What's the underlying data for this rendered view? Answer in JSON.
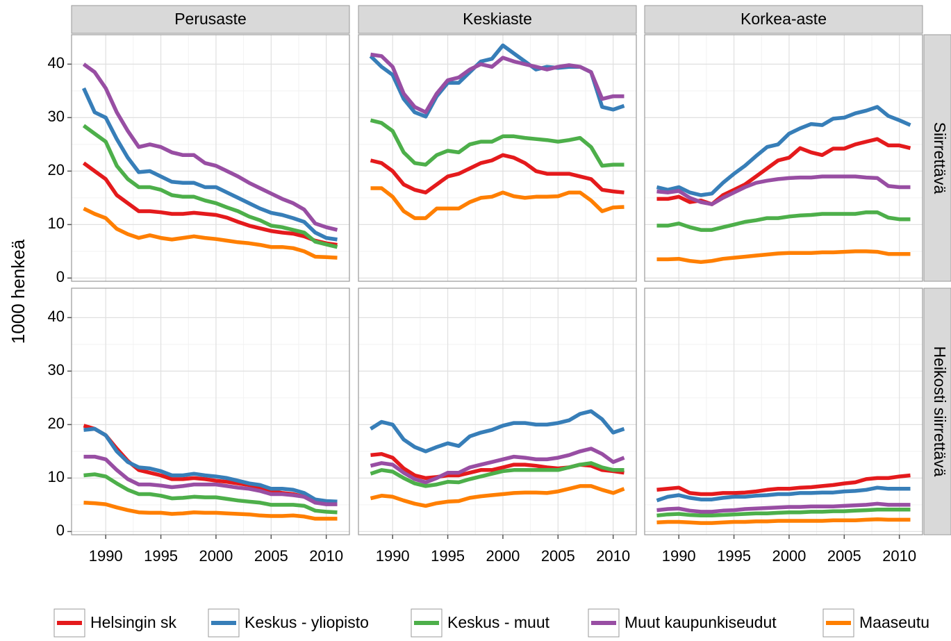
{
  "chart_data": {
    "type": "line",
    "ylabel": "1000 henkeä",
    "columns": [
      "Perusaste",
      "Keskiaste",
      "Korkea-aste"
    ],
    "rows": [
      "Siirrettävä",
      "Heikosti siirrettävä"
    ],
    "x": [
      1988,
      1989,
      1990,
      1991,
      1992,
      1993,
      1994,
      1995,
      1996,
      1997,
      1998,
      1999,
      2000,
      2001,
      2002,
      2003,
      2004,
      2005,
      2006,
      2007,
      2008,
      2009,
      2010,
      2011
    ],
    "xlim": [
      1986.9,
      2012.1
    ],
    "xticks": [
      1990,
      1995,
      2000,
      2005,
      2010
    ],
    "ylim": [
      -0.6,
      45.5
    ],
    "yticks": [
      0,
      10,
      20,
      30,
      40
    ],
    "grid": true,
    "series": [
      {
        "name": "Helsingin sk",
        "color": "#e41a1c",
        "values": [
          [
            21.5,
            20,
            18.5,
            15.5,
            14,
            12.5,
            12.5,
            12.3,
            12,
            12,
            12.2,
            12,
            11.8,
            11.3,
            10.5,
            9.8,
            9.3,
            8.8,
            8.5,
            8.3,
            7.8,
            7,
            6.5,
            6.2
          ],
          [
            22,
            21.5,
            20,
            17.5,
            16.5,
            16,
            17.5,
            19,
            19.5,
            20.5,
            21.5,
            22,
            23,
            22.5,
            21.5,
            20,
            19.5,
            19.5,
            19.5,
            19,
            18.5,
            16.5,
            16.2,
            16
          ],
          [
            14.8,
            14.8,
            15.2,
            14.2,
            14.5,
            13.8,
            15.5,
            16.5,
            17.5,
            19,
            20.5,
            22,
            22.5,
            24.3,
            23.5,
            23,
            24.2,
            24.2,
            25,
            25.5,
            26,
            24.8,
            24.8,
            24.3
          ],
          [
            19.8,
            19.2,
            18,
            15.5,
            13.2,
            11.5,
            11,
            10.5,
            9.8,
            9.8,
            10,
            9.8,
            9.5,
            9.3,
            9,
            8.7,
            8.2,
            7.5,
            7.2,
            7,
            6.5,
            5.5,
            5.2,
            5.2
          ],
          [
            14.3,
            14.5,
            13.8,
            11.8,
            10.5,
            10,
            10.2,
            10.5,
            10.5,
            11,
            11.5,
            11.5,
            12,
            12.5,
            12.5,
            12.3,
            12,
            11.8,
            12,
            12.5,
            12.3,
            11.5,
            11.3,
            11
          ],
          [
            7.8,
            8,
            8.2,
            7.2,
            7,
            7,
            7.2,
            7.2,
            7.3,
            7.5,
            7.8,
            8,
            8,
            8.2,
            8.3,
            8.5,
            8.7,
            9,
            9.2,
            9.8,
            10,
            10,
            10.3,
            10.5
          ]
        ]
      },
      {
        "name": "Keskus - yliopisto",
        "color": "#377eb8",
        "values": [
          [
            35.5,
            31,
            30,
            26,
            22.5,
            19.8,
            20,
            19,
            18,
            17.8,
            17.8,
            17,
            17,
            16,
            15,
            14,
            13,
            12.2,
            11.8,
            11.2,
            10.5,
            8.5,
            7.5,
            7.2
          ],
          [
            41.5,
            39.5,
            38,
            33.5,
            31,
            30.2,
            34,
            36.5,
            36.5,
            38.5,
            40.5,
            41,
            43.5,
            42,
            40.5,
            39,
            39.5,
            39.3,
            39.5,
            39.5,
            38.5,
            32,
            31.5,
            32.2
          ],
          [
            17,
            16.5,
            17,
            16,
            15.5,
            15.8,
            17.8,
            19.5,
            21,
            22.8,
            24.5,
            25,
            27,
            28,
            28.8,
            28.6,
            29.8,
            30,
            30.8,
            31.3,
            32,
            30.3,
            29.5,
            28.6
          ],
          [
            19,
            19.2,
            18,
            15,
            13,
            12,
            11.8,
            11.3,
            10.5,
            10.5,
            10.8,
            10.5,
            10.3,
            10,
            9.5,
            9,
            8.7,
            8,
            8,
            7.8,
            7.2,
            6,
            5.7,
            5.6
          ],
          [
            19.2,
            20.5,
            20,
            17.2,
            15.8,
            15,
            15.8,
            16.5,
            16,
            17.8,
            18.5,
            19,
            19.8,
            20.3,
            20.3,
            20,
            20,
            20.3,
            20.8,
            22,
            22.5,
            21,
            18.5,
            19.2
          ],
          [
            5.8,
            6.5,
            6.8,
            6.3,
            6,
            6,
            6.3,
            6.5,
            6.5,
            6.7,
            6.8,
            7,
            7,
            7.2,
            7.2,
            7.3,
            7.3,
            7.5,
            7.6,
            7.8,
            8.2,
            8,
            8,
            8
          ]
        ]
      },
      {
        "name": "Keskus - muut",
        "color": "#4daf4a",
        "values": [
          [
            28.5,
            27,
            25.5,
            21,
            18.5,
            17,
            17,
            16.5,
            15.5,
            15.2,
            15.2,
            14.5,
            14,
            13.2,
            12.5,
            11.5,
            10.8,
            9.8,
            9.5,
            9,
            8.5,
            6.8,
            6.3,
            5.8
          ],
          [
            29.5,
            29,
            27.5,
            23.5,
            21.5,
            21.2,
            23,
            23.8,
            23.5,
            25,
            25.5,
            25.5,
            26.5,
            26.5,
            26.2,
            26,
            25.8,
            25.5,
            25.8,
            26.2,
            24.5,
            21,
            21.2,
            21.2
          ],
          [
            9.8,
            9.8,
            10.2,
            9.5,
            9,
            9,
            9.5,
            10,
            10.5,
            10.8,
            11.2,
            11.2,
            11.5,
            11.7,
            11.8,
            12,
            12,
            12,
            12,
            12.3,
            12.3,
            11.3,
            11,
            11
          ],
          [
            10.5,
            10.7,
            10.3,
            9,
            7.8,
            7,
            7,
            6.7,
            6.2,
            6.3,
            6.5,
            6.4,
            6.4,
            6.1,
            5.8,
            5.6,
            5.4,
            5,
            5,
            5,
            4.8,
            3.9,
            3.7,
            3.6
          ],
          [
            10.8,
            11.5,
            11.2,
            10,
            9,
            8.5,
            8.8,
            9.3,
            9.2,
            9.8,
            10.3,
            10.8,
            11.3,
            11.5,
            11.5,
            11.5,
            11.5,
            11.5,
            12,
            12.5,
            12.8,
            12,
            11.5,
            11.5
          ],
          [
            3,
            3.2,
            3.3,
            3.1,
            3,
            3,
            3.1,
            3.2,
            3.3,
            3.4,
            3.4,
            3.5,
            3.6,
            3.6,
            3.7,
            3.7,
            3.8,
            3.8,
            3.9,
            4,
            4.1,
            4.1,
            4.1,
            4.1
          ]
        ]
      },
      {
        "name": "Muut kaupunkiseudut",
        "color": "#984ea3",
        "values": [
          [
            40,
            38.5,
            35.5,
            31,
            27.5,
            24.5,
            25,
            24.5,
            23.5,
            23,
            23,
            21.5,
            21,
            20,
            19,
            17.8,
            16.8,
            15.8,
            14.8,
            14,
            12.8,
            10.2,
            9.5,
            9
          ],
          [
            41.8,
            41.5,
            39.5,
            34.5,
            32,
            31,
            34.5,
            37,
            37.5,
            39,
            40,
            39.5,
            41.2,
            40.5,
            40,
            39.5,
            39,
            39.5,
            39.8,
            39.5,
            38.5,
            33.5,
            34,
            34
          ],
          [
            16.2,
            16,
            16.3,
            15,
            14.2,
            13.8,
            15,
            16,
            17,
            17.8,
            18.2,
            18.5,
            18.7,
            18.8,
            18.8,
            19,
            19,
            19,
            19,
            18.8,
            18.7,
            17.2,
            17,
            17
          ],
          [
            14,
            14,
            13.5,
            11.5,
            9.8,
            8.8,
            8.8,
            8.6,
            8.3,
            8.5,
            8.8,
            8.8,
            8.8,
            8.5,
            8.2,
            8,
            7.6,
            7,
            7,
            6.8,
            6.5,
            5.4,
            5.1,
            5.1
          ],
          [
            12.3,
            12.8,
            12.5,
            11,
            9.8,
            9.2,
            10,
            11,
            11,
            12,
            12.5,
            13,
            13.5,
            14,
            13.8,
            13.5,
            13.5,
            13.8,
            14.3,
            15,
            15.5,
            14.5,
            13,
            13.8
          ],
          [
            4,
            4.2,
            4.3,
            3.9,
            3.7,
            3.7,
            3.9,
            4,
            4.2,
            4.3,
            4.4,
            4.5,
            4.6,
            4.6,
            4.7,
            4.7,
            4.7,
            4.8,
            4.9,
            5,
            5.2,
            5,
            5,
            5
          ]
        ]
      },
      {
        "name": "Maaseutu",
        "color": "#ff7f00",
        "values": [
          [
            13,
            12,
            11.2,
            9.2,
            8.2,
            7.5,
            8,
            7.5,
            7.2,
            7.5,
            7.8,
            7.5,
            7.3,
            7,
            6.7,
            6.5,
            6.2,
            5.8,
            5.8,
            5.6,
            5,
            4,
            3.9,
            3.8
          ],
          [
            16.8,
            16.8,
            15.2,
            12.5,
            11.2,
            11.2,
            13,
            13,
            13,
            14.2,
            15,
            15.2,
            16,
            15.3,
            15,
            15.2,
            15.2,
            15.3,
            16,
            16,
            14.5,
            12.5,
            13.2,
            13.3
          ],
          [
            3.5,
            3.5,
            3.6,
            3.2,
            3,
            3.2,
            3.6,
            3.8,
            4,
            4.2,
            4.4,
            4.6,
            4.7,
            4.7,
            4.7,
            4.8,
            4.8,
            4.9,
            5,
            5,
            4.9,
            4.5,
            4.5,
            4.5
          ],
          [
            5.4,
            5.3,
            5.1,
            4.5,
            4,
            3.6,
            3.5,
            3.5,
            3.3,
            3.4,
            3.6,
            3.5,
            3.5,
            3.4,
            3.3,
            3.2,
            3,
            2.9,
            2.9,
            3,
            2.8,
            2.4,
            2.4,
            2.4
          ],
          [
            6.2,
            6.7,
            6.5,
            5.8,
            5.2,
            4.8,
            5.3,
            5.6,
            5.7,
            6.3,
            6.6,
            6.8,
            7,
            7.2,
            7.3,
            7.3,
            7.2,
            7.5,
            8,
            8.5,
            8.5,
            7.8,
            7.2,
            8
          ],
          [
            1.7,
            1.8,
            1.8,
            1.7,
            1.6,
            1.6,
            1.7,
            1.8,
            1.8,
            1.9,
            1.9,
            2,
            2,
            2,
            2,
            2,
            2.1,
            2.1,
            2.1,
            2.2,
            2.3,
            2.2,
            2.2,
            2.2
          ]
        ]
      }
    ]
  }
}
